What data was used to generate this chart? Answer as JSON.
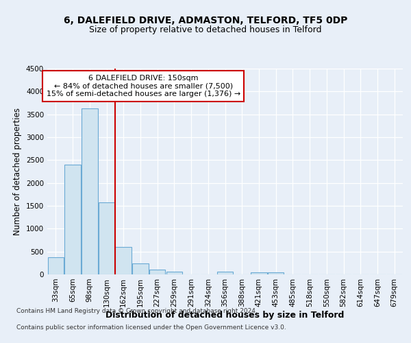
{
  "title1": "6, DALEFIELD DRIVE, ADMASTON, TELFORD, TF5 0DP",
  "title2": "Size of property relative to detached houses in Telford",
  "xlabel": "Distribution of detached houses by size in Telford",
  "ylabel": "Number of detached properties",
  "categories": [
    "33sqm",
    "65sqm",
    "98sqm",
    "130sqm",
    "162sqm",
    "195sqm",
    "227sqm",
    "259sqm",
    "291sqm",
    "324sqm",
    "356sqm",
    "388sqm",
    "421sqm",
    "453sqm",
    "485sqm",
    "518sqm",
    "550sqm",
    "582sqm",
    "614sqm",
    "647sqm",
    "679sqm"
  ],
  "values": [
    375,
    2400,
    3625,
    1575,
    600,
    240,
    100,
    55,
    0,
    0,
    55,
    0,
    50,
    50,
    0,
    0,
    0,
    0,
    0,
    0,
    0
  ],
  "bar_color": "#d0e4f0",
  "bar_edge_color": "#6aaad4",
  "vline_color": "#cc0000",
  "ylim": [
    0,
    4500
  ],
  "yticks": [
    0,
    500,
    1000,
    1500,
    2000,
    2500,
    3000,
    3500,
    4000,
    4500
  ],
  "annotation_line1": "6 DALEFIELD DRIVE: 150sqm",
  "annotation_line2": "← 84% of detached houses are smaller (7,500)",
  "annotation_line3": "15% of semi-detached houses are larger (1,376) →",
  "annotation_box_color": "#cc0000",
  "annotation_box_bg": "#ffffff",
  "footer_line1": "Contains HM Land Registry data © Crown copyright and database right 2024.",
  "footer_line2": "Contains public sector information licensed under the Open Government Licence v3.0.",
  "bg_color": "#e8eff8",
  "plot_bg_color": "#e8eff8",
  "grid_color": "#ffffff",
  "title_fontsize": 10,
  "subtitle_fontsize": 9,
  "tick_fontsize": 7.5,
  "ylabel_fontsize": 8.5,
  "xlabel_fontsize": 9,
  "footer_fontsize": 6.5
}
